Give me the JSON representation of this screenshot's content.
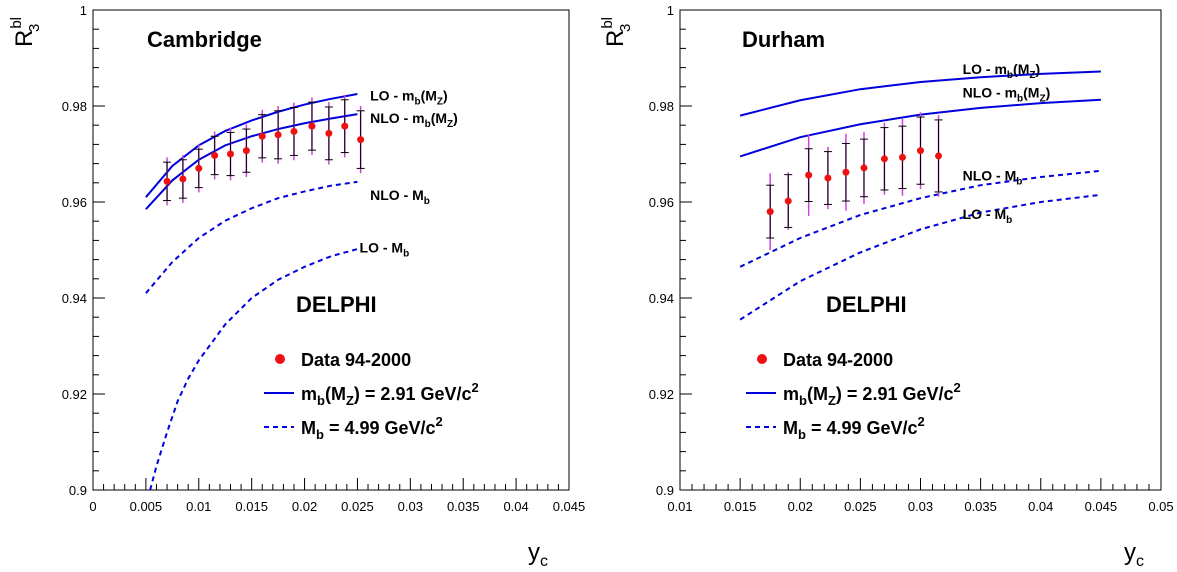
{
  "chart_data": [
    {
      "type": "line",
      "panel_label": "Cambridge",
      "experiment": "DELPHI",
      "xlabel": "y",
      "xlabel_sub": "c",
      "ylabel": "R",
      "ylabel_sup": "bl",
      "ylabel_sub": "3",
      "xlim": [
        0,
        0.045
      ],
      "ylim": [
        0.9,
        1.0
      ],
      "xticks": [
        0,
        0.005,
        0.01,
        0.015,
        0.02,
        0.025,
        0.03,
        0.035,
        0.04,
        0.045
      ],
      "xtick_labels": [
        "0",
        "0.005",
        "0.01",
        "0.015",
        "0.02",
        "0.025",
        "0.03",
        "0.035",
        "0.04",
        "0.045"
      ],
      "yticks": [
        0.9,
        0.92,
        0.94,
        0.96,
        0.98,
        1.0
      ],
      "ytick_labels": [
        "0.9",
        "0.92",
        "0.94",
        "0.96",
        "0.98",
        "1"
      ],
      "legend": {
        "placement": "bottom-right",
        "entries": [
          {
            "kind": "marker",
            "text": "Data 94-2000"
          },
          {
            "kind": "solid",
            "text": "m",
            "sub": "b",
            "mid": "(M",
            "sub2": "Z",
            "tail": ") = 2.91 GeV/c",
            "sup": "2"
          },
          {
            "kind": "dashed",
            "text": "M",
            "sub": "b",
            "mid": "",
            "sub2": "",
            "tail": " = 4.99 GeV/c",
            "sup": "2"
          }
        ]
      },
      "data_points": {
        "x": [
          0.007,
          0.0085,
          0.01,
          0.0115,
          0.013,
          0.0145,
          0.016,
          0.0175,
          0.019,
          0.0207,
          0.0223,
          0.0238,
          0.0253
        ],
        "y": [
          0.9643,
          0.9648,
          0.967,
          0.9697,
          0.97,
          0.9707,
          0.9737,
          0.974,
          0.9747,
          0.9758,
          0.9743,
          0.9758,
          0.973
        ],
        "stat_err": [
          0.004,
          0.004,
          0.004,
          0.004,
          0.0045,
          0.0045,
          0.0045,
          0.005,
          0.005,
          0.005,
          0.0055,
          0.0055,
          0.006
        ],
        "total_err": [
          0.005,
          0.005,
          0.005,
          0.005,
          0.0055,
          0.0055,
          0.0055,
          0.006,
          0.006,
          0.006,
          0.0065,
          0.0065,
          0.007
        ]
      },
      "series": [
        {
          "name": "LO - m_b(M_Z)",
          "style": "solid",
          "x": [
            0.005,
            0.0075,
            0.01,
            0.0125,
            0.015,
            0.0175,
            0.02,
            0.0225,
            0.025
          ],
          "y": [
            0.961,
            0.9675,
            0.9718,
            0.9748,
            0.977,
            0.9788,
            0.9803,
            0.9815,
            0.9825
          ]
        },
        {
          "name": "NLO - m_b(M_Z)",
          "style": "solid",
          "x": [
            0.005,
            0.0075,
            0.01,
            0.0125,
            0.015,
            0.0175,
            0.02,
            0.0225,
            0.025
          ],
          "y": [
            0.9585,
            0.9645,
            0.9688,
            0.9718,
            0.9737,
            0.9752,
            0.9764,
            0.9774,
            0.9783
          ]
        },
        {
          "name": "NLO - M_b",
          "style": "dashed",
          "x": [
            0.005,
            0.0075,
            0.01,
            0.0125,
            0.015,
            0.0175,
            0.02,
            0.0225,
            0.025
          ],
          "y": [
            0.941,
            0.9475,
            0.9525,
            0.9561,
            0.9587,
            0.9608,
            0.9622,
            0.9634,
            0.9642
          ]
        },
        {
          "name": "LO - M_b",
          "style": "dashed",
          "x": [
            0.0054,
            0.006,
            0.007,
            0.008,
            0.009,
            0.01,
            0.0125,
            0.015,
            0.0175,
            0.02,
            0.0225,
            0.0255
          ],
          "y": [
            0.9,
            0.905,
            0.912,
            0.9185,
            0.9232,
            0.927,
            0.9345,
            0.94,
            0.9438,
            0.9465,
            0.9487,
            0.9505
          ]
        }
      ],
      "curve_labels": [
        {
          "text": "LO - m",
          "sub": "b",
          "mid": "(M",
          "sub2": "Z",
          "tail": ")",
          "x": 0.0262,
          "y": 0.9822
        },
        {
          "text": "NLO - m",
          "sub": "b",
          "mid": "(M",
          "sub2": "Z",
          "tail": ")",
          "x": 0.0262,
          "y": 0.9775
        },
        {
          "text": "NLO - M",
          "sub": "b",
          "mid": "",
          "sub2": "",
          "tail": "",
          "x": 0.0262,
          "y": 0.9615
        },
        {
          "text": "LO - M",
          "sub": "b",
          "mid": "",
          "sub2": "",
          "tail": "",
          "x": 0.0252,
          "y": 0.9505
        }
      ]
    },
    {
      "type": "line",
      "panel_label": "Durham",
      "experiment": "DELPHI",
      "xlabel": "y",
      "xlabel_sub": "c",
      "ylabel": "R",
      "ylabel_sup": "bl",
      "ylabel_sub": "3",
      "xlim": [
        0.01,
        0.05
      ],
      "ylim": [
        0.9,
        1.0
      ],
      "xticks": [
        0.01,
        0.015,
        0.02,
        0.025,
        0.03,
        0.035,
        0.04,
        0.045,
        0.05
      ],
      "xtick_labels": [
        "0.01",
        "0.015",
        "0.02",
        "0.025",
        "0.03",
        "0.035",
        "0.04",
        "0.045",
        "0.05"
      ],
      "yticks": [
        0.9,
        0.92,
        0.94,
        0.96,
        0.98,
        1.0
      ],
      "ytick_labels": [
        "0.9",
        "0.92",
        "0.94",
        "0.96",
        "0.98",
        "1"
      ],
      "legend": {
        "placement": "bottom-left",
        "entries": [
          {
            "kind": "marker",
            "text": "Data 94-2000"
          },
          {
            "kind": "solid",
            "text": "m",
            "sub": "b",
            "mid": "(M",
            "sub2": "Z",
            "tail": ") = 2.91 GeV/c",
            "sup": "2"
          },
          {
            "kind": "dashed",
            "text": "M",
            "sub": "b",
            "mid": "",
            "sub2": "",
            "tail": " = 4.99 GeV/c",
            "sup": "2"
          }
        ]
      },
      "data_points": {
        "x": [
          0.0175,
          0.019,
          0.0207,
          0.0223,
          0.0238,
          0.0253,
          0.027,
          0.0285,
          0.03,
          0.0315
        ],
        "y": [
          0.958,
          0.9602,
          0.9656,
          0.965,
          0.9662,
          0.9671,
          0.969,
          0.9693,
          0.9707,
          0.9696
        ],
        "stat_err": [
          0.0055,
          0.0055,
          0.0055,
          0.0055,
          0.006,
          0.006,
          0.0065,
          0.0065,
          0.007,
          0.0075
        ],
        "total_err": [
          0.008,
          0.006,
          0.0085,
          0.0065,
          0.008,
          0.0075,
          0.0075,
          0.008,
          0.008,
          0.0085
        ]
      },
      "series": [
        {
          "name": "LO - m_b(M_Z)",
          "style": "solid",
          "x": [
            0.015,
            0.02,
            0.025,
            0.03,
            0.035,
            0.04,
            0.045
          ],
          "y": [
            0.978,
            0.9812,
            0.9835,
            0.985,
            0.986,
            0.9867,
            0.9872
          ]
        },
        {
          "name": "NLO - m_b(M_Z)",
          "style": "solid",
          "x": [
            0.015,
            0.02,
            0.025,
            0.03,
            0.035,
            0.04,
            0.045
          ],
          "y": [
            0.9695,
            0.9735,
            0.9762,
            0.9782,
            0.9796,
            0.9806,
            0.9813
          ]
        },
        {
          "name": "NLO - M_b",
          "style": "dashed",
          "x": [
            0.015,
            0.02,
            0.025,
            0.03,
            0.035,
            0.04,
            0.045
          ],
          "y": [
            0.9465,
            0.9525,
            0.9573,
            0.9608,
            0.9635,
            0.9652,
            0.9665
          ]
        },
        {
          "name": "LO - M_b",
          "style": "dashed",
          "x": [
            0.015,
            0.02,
            0.025,
            0.03,
            0.035,
            0.04,
            0.045
          ],
          "y": [
            0.9355,
            0.9435,
            0.9495,
            0.9543,
            0.9578,
            0.96,
            0.9615
          ]
        }
      ],
      "curve_labels": [
        {
          "text": "LO - m",
          "sub": "b",
          "mid": "(M",
          "sub2": "Z",
          "tail": ")",
          "x": 0.0335,
          "y": 0.9877
        },
        {
          "text": "NLO - m",
          "sub": "b",
          "mid": "(M",
          "sub2": "Z",
          "tail": ")",
          "x": 0.0335,
          "y": 0.9828
        },
        {
          "text": "NLO - M",
          "sub": "b",
          "mid": "",
          "sub2": "",
          "tail": "",
          "x": 0.0335,
          "y": 0.9655
        },
        {
          "text": "LO - M",
          "sub": "b",
          "mid": "",
          "sub2": "",
          "tail": "",
          "x": 0.0335,
          "y": 0.9575
        }
      ]
    }
  ],
  "colors": {
    "theory": "#0000dd",
    "data_marker": "#ee1111",
    "stat_error": "#000000",
    "total_error": "#cc44dd",
    "axis": "#000000"
  }
}
